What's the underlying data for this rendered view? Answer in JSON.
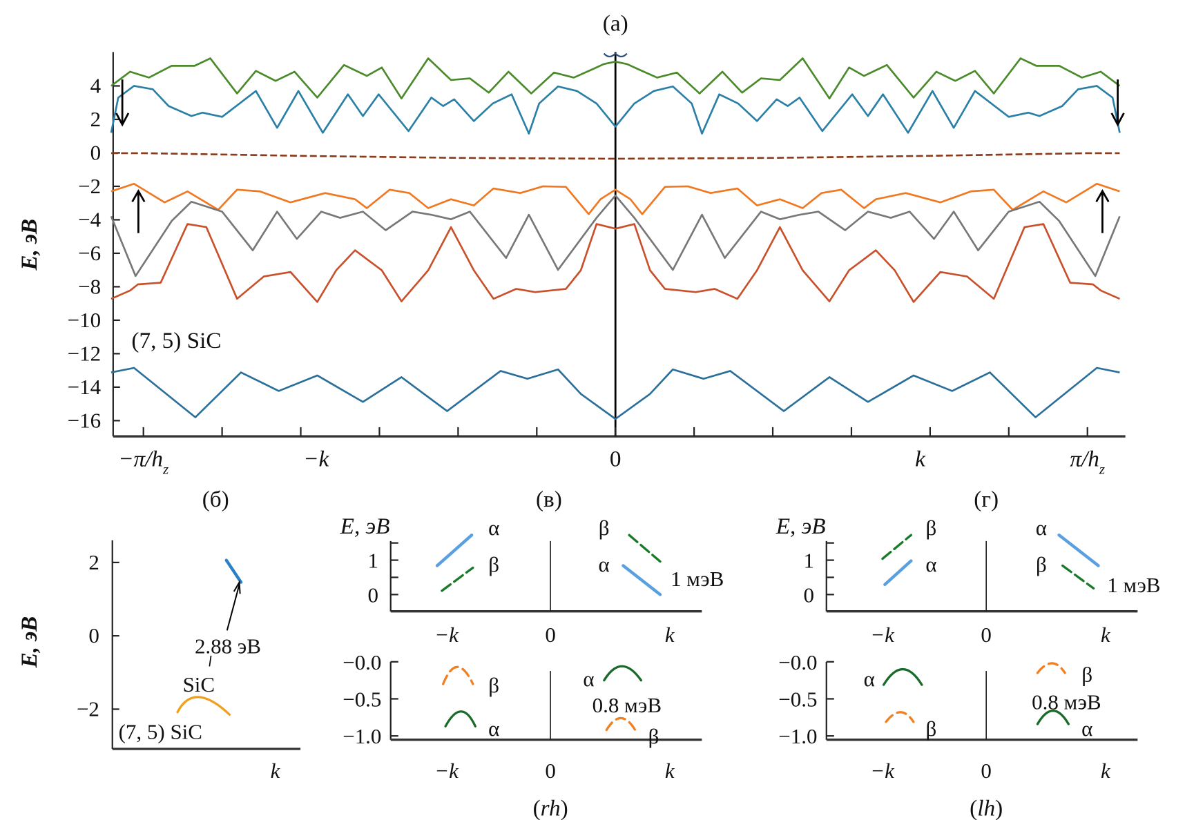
{
  "chart_data": [
    {
      "type": "line",
      "panel_label": "(a)",
      "ylabel": "E, эВ",
      "ylim": [
        -16.8,
        6
      ],
      "yticks": [
        4,
        2,
        0,
        -2,
        -4,
        -6,
        -8,
        -10,
        -12,
        -14,
        -16
      ],
      "ytick_labels": [
        "4",
        "2",
        "0",
        "−2",
        "−4",
        "−6",
        "−8",
        "−10",
        "−12",
        "−14",
        "−16"
      ],
      "xlim": [
        -6.35,
        6.45
      ],
      "xticks": [
        -6,
        -5,
        -4,
        -3,
        -2,
        -1,
        0,
        1,
        2,
        3,
        4,
        5,
        6
      ],
      "xtick_labels": [
        {
          "x": -6,
          "label": "−π/h",
          "sub": "z"
        },
        {
          "x": -4,
          "label": "−k",
          "sub": ""
        },
        {
          "x": 0,
          "label": "0",
          "sub": ""
        },
        {
          "x": 4,
          "label": "k",
          "sub": ""
        },
        {
          "x": 6,
          "label": "π/h",
          "sub": "z"
        }
      ],
      "annotation": "(7, 5) SiC",
      "mirror_symmetric": true,
      "grid": false,
      "series": [
        {
          "color": "#4a8a2a",
          "dashed": false,
          "x": [
            0,
            0.15,
            0.29,
            0.53,
            0.78,
            1.07,
            1.36,
            1.61,
            1.85,
            2.09,
            2.38,
            2.72,
            2.97,
            3.16,
            3.45,
            3.79,
            4.08,
            4.32,
            4.57,
            4.81,
            5.15,
            5.35,
            5.64,
            5.93,
            6.17,
            6.41
          ],
          "y": [
            5.45,
            5.3,
            5.0,
            4.5,
            4.8,
            3.55,
            4.85,
            3.6,
            4.45,
            4.35,
            5.65,
            3.25,
            5.1,
            4.6,
            5.25,
            3.3,
            4.85,
            4.3,
            4.9,
            3.55,
            5.65,
            5.2,
            5.2,
            4.5,
            4.85,
            4.0
          ]
        },
        {
          "color": "#2a7fa6",
          "dashed": false,
          "x": [
            0,
            0.24,
            0.49,
            0.73,
            0.97,
            1.1,
            1.32,
            1.56,
            1.8,
            2.05,
            2.19,
            2.34,
            2.63,
            3.01,
            3.21,
            3.4,
            3.72,
            4.03,
            4.3,
            4.57,
            5.0,
            5.25,
            5.39,
            5.68,
            5.88,
            6.12,
            6.32,
            6.41
          ],
          "y": [
            1.57,
            2.95,
            3.7,
            3.97,
            2.95,
            1.15,
            3.5,
            2.95,
            1.9,
            3.2,
            2.8,
            3.3,
            1.3,
            3.5,
            2.2,
            3.5,
            1.2,
            3.7,
            1.5,
            3.7,
            2.15,
            2.4,
            2.2,
            2.8,
            3.8,
            4.0,
            3.3,
            1.2
          ]
        },
        {
          "color": "#8b3a1a",
          "dashed": true,
          "x": [
            0,
            2,
            4,
            6,
            6.41
          ],
          "y": [
            -0.35,
            -0.3,
            -0.18,
            -0.02,
            -0.02
          ]
        },
        {
          "color": "#f07820",
          "dashed": false,
          "x": [
            0,
            0.19,
            0.34,
            0.63,
            0.92,
            1.21,
            1.55,
            1.8,
            2.09,
            2.38,
            2.62,
            2.87,
            3.16,
            3.31,
            3.69,
            4.13,
            4.52,
            4.81,
            5.05,
            5.44,
            5.73,
            6.12,
            6.41
          ],
          "y": [
            -2.2,
            -2.77,
            -3.66,
            -2.03,
            -2.0,
            -2.4,
            -2.13,
            -3.14,
            -2.77,
            -3.3,
            -2.4,
            -2.2,
            -3.3,
            -2.77,
            -2.4,
            -2.96,
            -2.3,
            -2.2,
            -3.4,
            -2.3,
            -2.96,
            -1.85,
            -2.3
          ]
        },
        {
          "color": "#777777",
          "dashed": false,
          "x": [
            0,
            0.24,
            0.73,
            1.1,
            1.39,
            1.85,
            2.09,
            2.34,
            2.58,
            2.92,
            3.21,
            3.5,
            3.74,
            4.05,
            4.3,
            4.61,
            5.0,
            5.39,
            5.64,
            6.1,
            6.41
          ],
          "y": [
            -2.55,
            -3.88,
            -6.99,
            -3.7,
            -6.28,
            -3.51,
            -3.97,
            -3.7,
            -3.51,
            -4.62,
            -3.51,
            -3.88,
            -3.51,
            -5.14,
            -3.51,
            -5.82,
            -3.51,
            -2.92,
            -4.07,
            -7.36,
            -3.79
          ]
        },
        {
          "color": "#c8502a",
          "dashed": false,
          "x": [
            0,
            0.24,
            0.44,
            0.63,
            1.02,
            1.26,
            1.55,
            1.8,
            2.09,
            2.38,
            2.72,
            2.97,
            3.31,
            3.55,
            3.79,
            4.13,
            4.47,
            4.81,
            5.2,
            5.44,
            5.78,
            6.07,
            6.17,
            6.41
          ],
          "y": [
            -4.53,
            -4.25,
            -7.02,
            -8.13,
            -8.32,
            -8.13,
            -8.72,
            -7.02,
            -4.44,
            -7.02,
            -8.87,
            -7.02,
            -5.82,
            -7.02,
            -8.91,
            -7.12,
            -7.39,
            -8.72,
            -4.44,
            -4.25,
            -7.76,
            -7.86,
            -8.23,
            -8.72
          ]
        },
        {
          "color": "#2a6f9a",
          "dashed": false,
          "x": [
            0,
            0.44,
            0.73,
            1.12,
            1.46,
            2.14,
            2.72,
            3.21,
            3.79,
            4.28,
            4.76,
            5.34,
            6.12,
            6.41
          ],
          "y": [
            -15.9,
            -14.4,
            -12.94,
            -13.5,
            -13.03,
            -15.43,
            -13.4,
            -14.88,
            -13.3,
            -14.23,
            -13.12,
            -15.8,
            -12.85,
            -13.12
          ]
        }
      ]
    },
    {
      "type": "line",
      "panel_label": "(б)",
      "ylabel": "E, эВ",
      "yticks": [
        2,
        0,
        -2
      ],
      "ytick_labels": [
        "2",
        "0",
        "−2"
      ],
      "xtick_labels": [
        {
          "x": 1,
          "label": "k"
        }
      ],
      "annotations": [
        "2.88 эВ",
        "SiC",
        "(7, 5) SiC"
      ],
      "segments": [
        {
          "color": "#2a7fc6",
          "kind": "line",
          "x": [
            0.7,
            0.79
          ],
          "y": [
            2.06,
            1.46
          ]
        },
        {
          "color": "#f0a020",
          "kind": "arch",
          "x": [
            0.4,
            0.53,
            0.72
          ],
          "y": [
            -2.08,
            -1.67,
            -2.15
          ]
        }
      ]
    },
    {
      "type": "line",
      "panel_label": "(в)",
      "bottom_label": "rh",
      "top": {
        "ylabel": "E, эВ",
        "yticks": [
          0,
          0.5,
          1,
          1.5
        ],
        "ytick_labels": [
          {
            "y": 1,
            "label": "1"
          },
          {
            "y": 0,
            "label": "0"
          }
        ],
        "xtick_labels": [
          "−k",
          "0",
          "k"
        ],
        "labels": [
          "α",
          "β",
          "β",
          "α",
          "1 мэВ"
        ],
        "segments": [
          {
            "name": "α",
            "color": "#5aa0e0",
            "kind": "line",
            "x": [
              -0.95,
              -0.66
            ],
            "y": [
              0.84,
              1.73
            ]
          },
          {
            "name": "β",
            "color": "#1a7a2a",
            "kind": "dash",
            "x": [
              -0.91,
              -0.65
            ],
            "y": [
              0.11,
              0.78
            ]
          },
          {
            "name": "β",
            "color": "#1a7a2a",
            "kind": "dash",
            "x": [
              0.66,
              0.92
            ],
            "y": [
              1.73,
              0.96
            ]
          },
          {
            "name": "α",
            "color": "#5aa0e0",
            "kind": "line",
            "x": [
              0.61,
              0.92
            ],
            "y": [
              0.84,
              0.0
            ]
          }
        ]
      },
      "bottom": {
        "yticks": [
          0,
          -0.5,
          -1.0
        ],
        "ytick_labels": [
          "−0.0",
          "−0.5",
          "−1.0"
        ],
        "xtick_labels": [
          "−k",
          "0",
          "k"
        ],
        "labels": [
          "β",
          "α",
          "α",
          "0.8 мэВ",
          "β"
        ],
        "segments": [
          {
            "name": "β",
            "color": "#f08020",
            "kind": "archdash",
            "x": [
              -0.9,
              -0.78,
              -0.65
            ],
            "y": [
              -0.3,
              -0.07,
              -0.3
            ]
          },
          {
            "name": "α",
            "color": "#1a6a2a",
            "kind": "arch",
            "x": [
              -0.88,
              -0.75,
              -0.63
            ],
            "y": [
              -0.87,
              -0.67,
              -0.87
            ]
          },
          {
            "name": "α",
            "color": "#1a6a2a",
            "kind": "arch",
            "x": [
              0.45,
              0.6,
              0.76
            ],
            "y": [
              -0.25,
              -0.06,
              -0.25
            ]
          },
          {
            "name": "β",
            "color": "#f08020",
            "kind": "archdash",
            "x": [
              0.47,
              0.59,
              0.71
            ],
            "y": [
              -0.92,
              -0.76,
              -0.92
            ]
          }
        ]
      }
    },
    {
      "type": "line",
      "panel_label": "(г)",
      "bottom_label": "lh",
      "top": {
        "ylabel": "E, эВ",
        "yticks": [
          0,
          0.5,
          1,
          1.5
        ],
        "ytick_labels": [
          {
            "y": 1,
            "label": "1"
          },
          {
            "y": 0,
            "label": "0"
          }
        ],
        "xtick_labels": [
          "−k",
          "0",
          "k"
        ],
        "labels": [
          "β",
          "α",
          "α",
          "β",
          "1 мэВ"
        ],
        "segments": [
          {
            "name": "β",
            "color": "#1a7a2a",
            "kind": "dash",
            "x": [
              -0.87,
              -0.63
            ],
            "y": [
              1.04,
              1.73
            ]
          },
          {
            "name": "α",
            "color": "#5aa0e0",
            "kind": "line",
            "x": [
              -0.85,
              -0.63
            ],
            "y": [
              0.29,
              0.98
            ]
          },
          {
            "name": "α",
            "color": "#5aa0e0",
            "kind": "line",
            "x": [
              0.61,
              0.94
            ],
            "y": [
              1.73,
              0.84
            ]
          },
          {
            "name": "β",
            "color": "#1a7a2a",
            "kind": "dash",
            "x": [
              0.64,
              0.9
            ],
            "y": [
              0.84,
              0.18
            ]
          }
        ]
      },
      "bottom": {
        "yticks": [
          0,
          -0.5,
          -1.0
        ],
        "ytick_labels": [
          "−0.0",
          "−0.5",
          "−1.0"
        ],
        "xtick_labels": [
          "−k",
          "0",
          "k"
        ],
        "labels": [
          "α",
          "β",
          "β",
          "0.8 мэВ",
          "α"
        ],
        "segments": [
          {
            "name": "α",
            "color": "#1a6a2a",
            "kind": "arch",
            "x": [
              -0.86,
              -0.7,
              -0.54
            ],
            "y": [
              -0.31,
              -0.1,
              -0.31
            ]
          },
          {
            "name": "β",
            "color": "#f08020",
            "kind": "archdash",
            "x": [
              -0.84,
              -0.72,
              -0.61
            ],
            "y": [
              -0.81,
              -0.68,
              -0.81
            ]
          },
          {
            "name": "β",
            "color": "#f08020",
            "kind": "archdash",
            "x": [
              0.43,
              0.55,
              0.66
            ],
            "y": [
              -0.15,
              -0.02,
              -0.15
            ]
          },
          {
            "name": "α",
            "color": "#1a6a2a",
            "kind": "arch",
            "x": [
              0.43,
              0.56,
              0.69
            ],
            "y": [
              -0.84,
              -0.66,
              -0.84
            ]
          }
        ]
      }
    }
  ]
}
